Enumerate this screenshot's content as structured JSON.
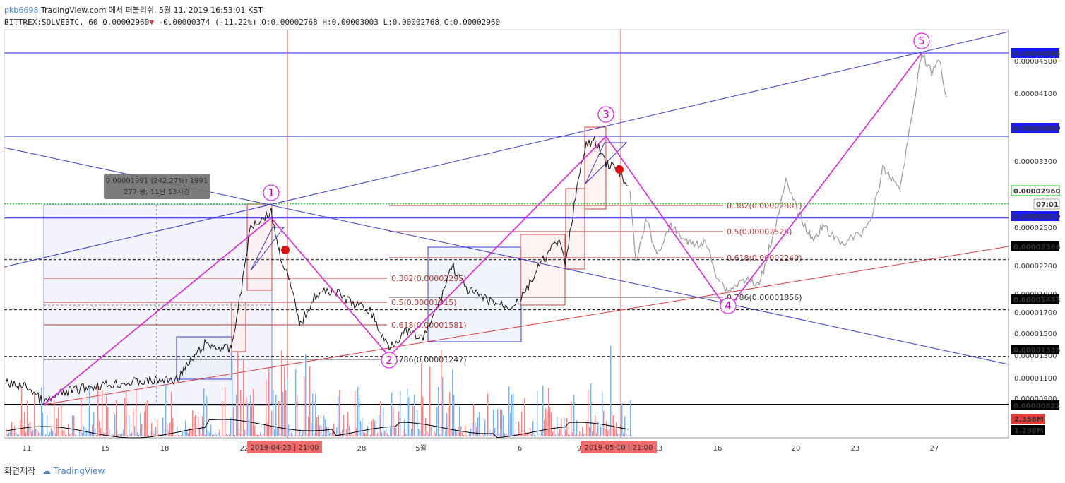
{
  "header": {
    "user": "pkb6698",
    "line1": "TradingView.com 에서 퍼블리쉬, 5월 11, 2019 16:53:01 KST",
    "symbol": "BITTREX:SOLVEBTC, 60",
    "last": "0.00002960",
    "change": "-0.00000374 (-11.22%)",
    "open": "O:0.00002768",
    "high": "H:0.00003003",
    "low": "L:0.00002768",
    "close": "C:0.00002960"
  },
  "footer": {
    "made_with": "화면제작",
    "brand": "TradingView"
  },
  "chart_data": {
    "type": "line",
    "x_ticks": [
      "11",
      "15",
      "18",
      "22",
      "28",
      "5월",
      "6",
      "9",
      "13",
      "16",
      "20",
      "23",
      "27"
    ],
    "y_ticks": [
      "0.00004500",
      "0.00004100",
      "0.00003300",
      "0.00002500",
      "0.00002200",
      "0.00001900",
      "0.00001700",
      "0.00001500",
      "0.00001300",
      "0.00001100",
      "0.00000900"
    ],
    "price_tags": [
      {
        "value": "0.00004568",
        "kind": "blue"
      },
      {
        "value": "0.00003680",
        "kind": "blue"
      },
      {
        "value": "0.00002960",
        "kind": "green"
      },
      {
        "value": "07:01",
        "kind": "time"
      },
      {
        "value": "0.00002810",
        "kind": "blue"
      },
      {
        "value": "0.00002366",
        "kind": "black"
      },
      {
        "value": "0.00001833",
        "kind": "black"
      },
      {
        "value": "0.00001335",
        "kind": "black"
      },
      {
        "value": "0.00000822",
        "kind": "black"
      }
    ],
    "volume_tags": [
      {
        "value": "2.358M",
        "kind": "red"
      },
      {
        "value": "1.298M",
        "kind": "black"
      }
    ],
    "date_tags": [
      "2019-04-23 | 21:00",
      "2019-05-10 | 21:00"
    ],
    "measure_box": {
      "line1": "0.00001991 (242.27%) 1991",
      "line2": "277 봉, 11날 13시간"
    },
    "fib_sets": [
      {
        "color": "#b03a3a",
        "levels": [
          "0.382(0.00002295)",
          "0.5(0.00001915)",
          "0.618(0.00001581)",
          "0.786(0.00001247)"
        ]
      },
      {
        "color": "#b03a3a",
        "levels": [
          "0.382(0.00002801)",
          "0.5(0.00002525)",
          "0.618(0.00002249)",
          "0.786(0.00001856)"
        ]
      }
    ],
    "wave_labels": [
      "1",
      "2",
      "3",
      "4",
      "5"
    ],
    "wave_points": [
      {
        "label": "0",
        "date": "12",
        "price": 8.22e-06
      },
      {
        "label": "1",
        "date": "21",
        "price": 2.81e-05
      },
      {
        "label": "2",
        "date": "29",
        "price": 1.335e-05
      },
      {
        "label": "3",
        "date": "9",
        "price": 3.68e-05
      },
      {
        "label": "4",
        "date": "16",
        "price": 1.833e-05
      },
      {
        "label": "5",
        "date": "26",
        "price": 4.568e-05
      }
    ],
    "colors": {
      "wave": "#e020e0",
      "channel": "#3a3ad0",
      "support": "#e03a3a",
      "fib_red": "#b03a3a",
      "price": "#111111",
      "projection": "#9a9a9a",
      "vol_up": "#7fb3e6",
      "vol_down": "#f08a8a",
      "tag_blue": "#1a1aff",
      "tag_black": "#000000",
      "tag_green": "#00c800"
    }
  }
}
